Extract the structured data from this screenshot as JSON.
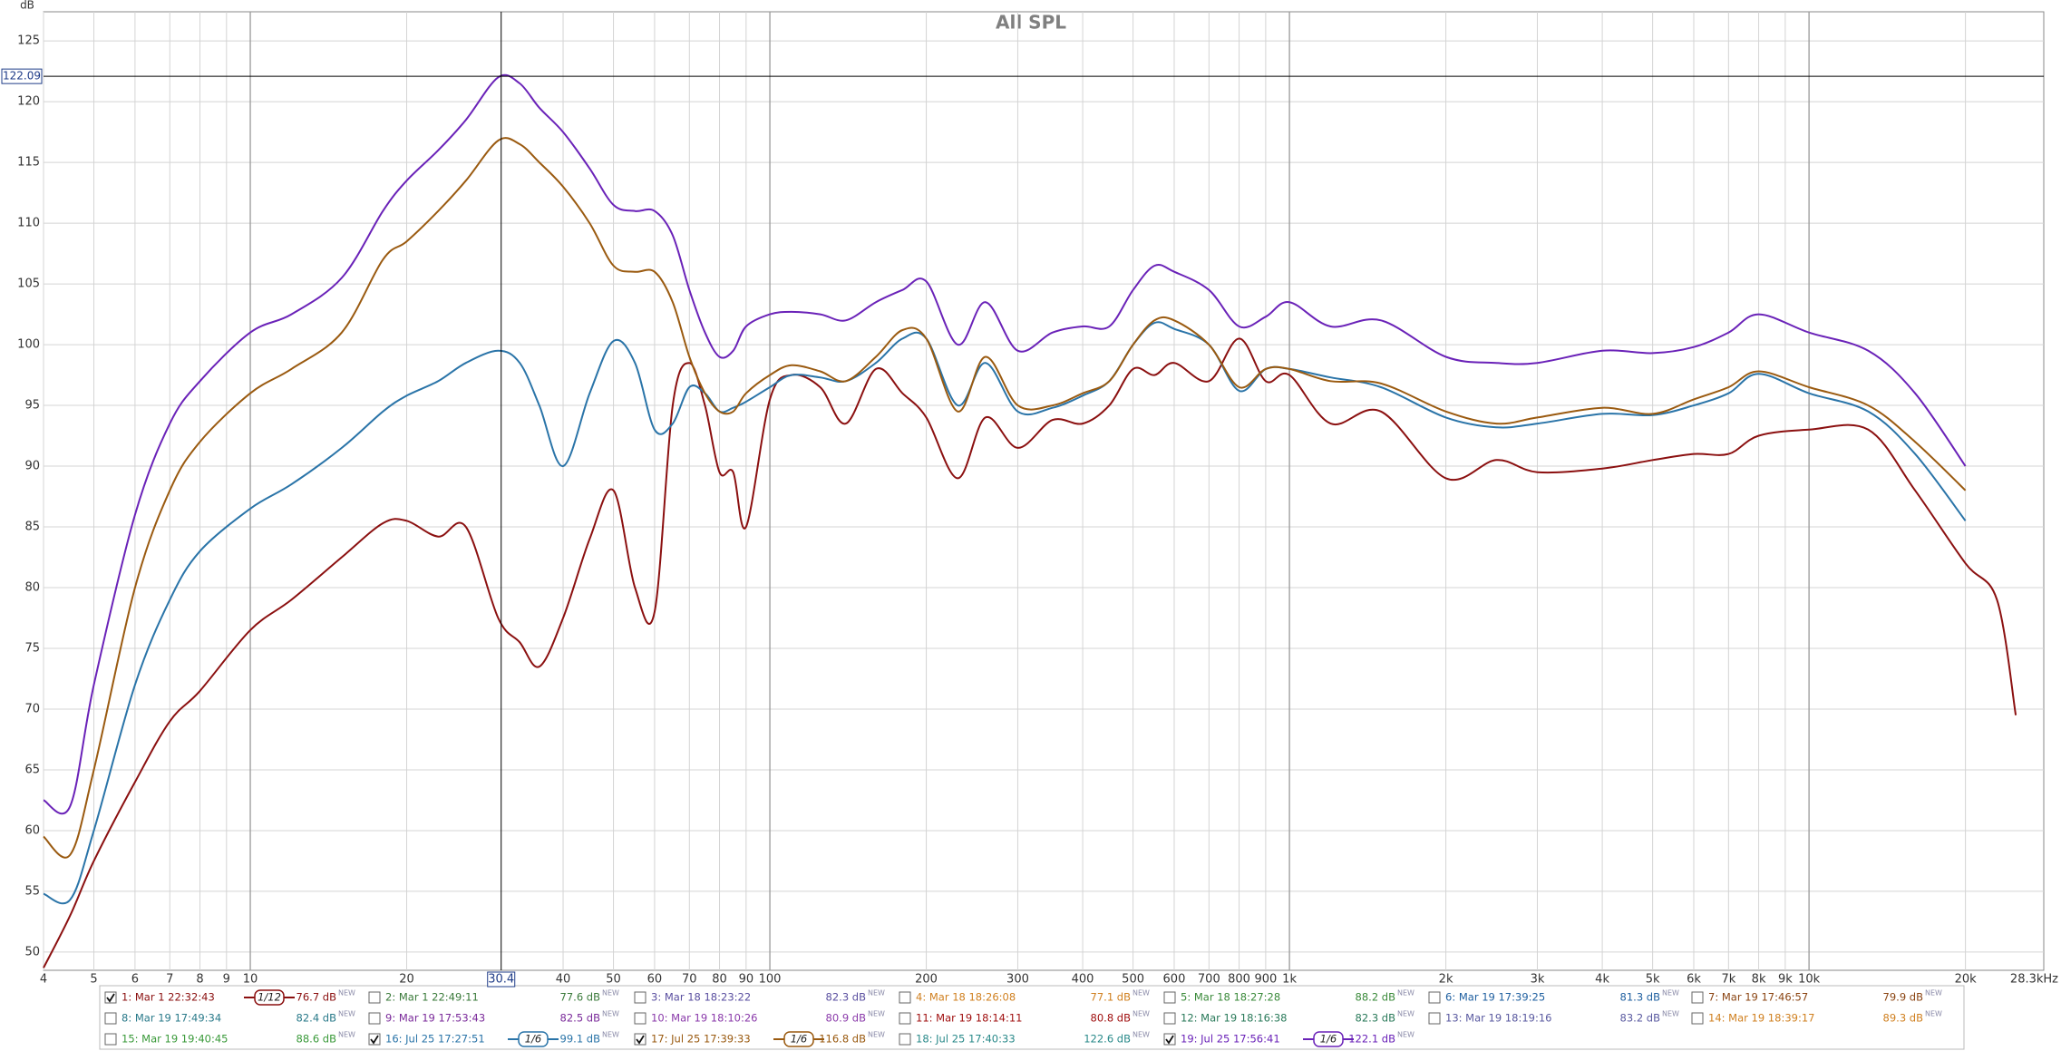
{
  "chart_data": {
    "type": "line",
    "title": "All SPL",
    "y_unit": "dB",
    "xscale": "log",
    "grid": true,
    "xlim": [
      4,
      28300
    ],
    "ylim": [
      48.5,
      127.4
    ],
    "xticks": [
      4,
      5,
      6,
      7,
      8,
      9,
      10,
      20,
      40,
      50,
      60,
      70,
      80,
      90,
      100,
      200,
      300,
      400,
      500,
      600,
      700,
      800,
      900,
      {
        "value": 1000,
        "label": "1k"
      },
      {
        "value": 2000,
        "label": "2k"
      },
      {
        "value": 3000,
        "label": "3k"
      },
      {
        "value": 4000,
        "label": "4k"
      },
      {
        "value": 5000,
        "label": "5k"
      },
      {
        "value": 6000,
        "label": "6k"
      },
      {
        "value": 7000,
        "label": "7k"
      },
      {
        "value": 8000,
        "label": "8k"
      },
      {
        "value": 9000,
        "label": "9k"
      },
      {
        "value": 10000,
        "label": "10k"
      },
      {
        "value": 20000,
        "label": "20k"
      },
      {
        "value": 28300,
        "label": "28.3kHz"
      }
    ],
    "yticks": [
      50,
      55,
      60,
      65,
      70,
      75,
      80,
      85,
      90,
      95,
      100,
      105,
      110,
      115,
      120,
      125
    ],
    "cursor": {
      "x": 30.4,
      "y": 122.09
    },
    "new_badge": "NEW",
    "x": [
      4,
      4.5,
      5,
      6,
      7,
      8,
      10,
      12,
      15,
      18,
      20,
      23,
      26,
      30,
      33,
      36,
      40,
      45,
      50,
      55,
      60,
      65,
      70,
      75,
      80,
      85,
      90,
      100,
      110,
      125,
      140,
      160,
      180,
      200,
      230,
      260,
      300,
      350,
      400,
      450,
      500,
      550,
      600,
      700,
      800,
      900,
      1000,
      1200,
      1500,
      2000,
      2500,
      3000,
      4000,
      5000,
      6000,
      7000,
      8000,
      10000,
      13000,
      16000,
      20000,
      23000,
      25000
    ],
    "series": [
      {
        "name": "1: Mar 1 22:32:43",
        "color": "#8b1010",
        "checked": true,
        "smoothing": "1/12",
        "level_label": "76.7 dB",
        "values": [
          48.7,
          53,
          57.5,
          64,
          69,
          71.5,
          76.5,
          79,
          82.5,
          85.3,
          85.5,
          84.2,
          85,
          77.5,
          75.5,
          73.5,
          77.5,
          84,
          88,
          80,
          78,
          95,
          98.5,
          95,
          89.5,
          89.5,
          85,
          95.5,
          97.5,
          96.5,
          93.5,
          98,
          96,
          94,
          89,
          94,
          91.5,
          93.8,
          93.5,
          95,
          98,
          97.5,
          98.5,
          97,
          100.5,
          97,
          97.5,
          93.5,
          94.5,
          89,
          90.5,
          89.5,
          89.8,
          90.5,
          91,
          91,
          92.5,
          93,
          93,
          88,
          82,
          79,
          69.5
        ]
      },
      {
        "name": "2: Mar 1 22:49:11",
        "color": "#3a7a3a",
        "checked": false,
        "level_label": "77.6 dB"
      },
      {
        "name": "3: Mar 18 18:23:22",
        "color": "#5a4fa0",
        "checked": false,
        "level_label": "82.3 dB"
      },
      {
        "name": "4: Mar 18 18:26:08",
        "color": "#d08020",
        "checked": false,
        "level_label": "77.1 dB"
      },
      {
        "name": "5: Mar 18 18:27:28",
        "color": "#3a8a3a",
        "checked": false,
        "level_label": "88.2 dB"
      },
      {
        "name": "6: Mar 19 17:39:25",
        "color": "#2060a0",
        "checked": false,
        "level_label": "81.3 dB"
      },
      {
        "name": "7: Mar 19 17:46:57",
        "color": "#8b4513",
        "checked": false,
        "level_label": "79.9 dB"
      },
      {
        "name": "8: Mar 19 17:49:34",
        "color": "#2a7a8a",
        "checked": false,
        "level_label": "82.4 dB"
      },
      {
        "name": "9: Mar 19 17:53:43",
        "color": "#7a2a9a",
        "checked": false,
        "level_label": "82.5 dB"
      },
      {
        "name": "10: Mar 19 18:10:26",
        "color": "#8a3aaa",
        "checked": false,
        "level_label": "80.9 dB"
      },
      {
        "name": "11: Mar 19 18:14:11",
        "color": "#a01010",
        "checked": false,
        "level_label": "80.8 dB"
      },
      {
        "name": "12: Mar 19 18:16:38",
        "color": "#2a7a5a",
        "checked": false,
        "level_label": "82.3 dB"
      },
      {
        "name": "13: Mar 19 18:19:16",
        "color": "#5a5aa0",
        "checked": false,
        "level_label": "83.2 dB"
      },
      {
        "name": "14: Mar 19 18:39:17",
        "color": "#d08020",
        "checked": false,
        "level_label": "89.3 dB"
      },
      {
        "name": "15: Mar 19 19:40:45",
        "color": "#3a9a3a",
        "checked": false,
        "level_label": "88.6 dB"
      },
      {
        "name": "16: Jul 25 17:27:51",
        "color": "#2a74a8",
        "checked": true,
        "smoothing": "1/6",
        "level_label": "99.1 dB",
        "values": [
          54.8,
          54.3,
          60,
          72,
          79,
          83,
          86.5,
          88.5,
          91.5,
          94.5,
          95.8,
          97,
          98.5,
          99.5,
          98.5,
          95,
          90,
          96,
          100.3,
          98.5,
          93,
          93.5,
          96.5,
          96,
          94.5,
          94.8,
          95.3,
          96.5,
          97.5,
          97.3,
          97,
          98.5,
          100.5,
          100.5,
          95,
          98.5,
          94.5,
          94.8,
          95.8,
          97,
          100,
          101.8,
          101.3,
          100,
          96.2,
          98,
          98,
          97.3,
          96.5,
          94,
          93.2,
          93.5,
          94.3,
          94.2,
          95,
          96,
          97.6,
          96,
          94.5,
          91,
          85.5,
          null,
          null
        ]
      },
      {
        "name": "17: Jul 25 17:39:33",
        "color": "#9a5a10",
        "checked": true,
        "smoothing": "1/6",
        "level_label": "116.8 dB",
        "values": [
          59.5,
          58,
          65,
          80,
          88,
          92,
          96,
          98,
          101,
          107,
          108.5,
          111,
          113.5,
          116.8,
          116.5,
          115,
          113,
          110,
          106.5,
          106,
          106,
          103.5,
          99,
          96,
          94.5,
          94.5,
          96,
          97.5,
          98.3,
          97.8,
          97,
          99,
          101.2,
          100.5,
          94.5,
          99,
          95,
          95,
          96,
          97,
          100,
          102,
          102,
          100,
          96.5,
          98,
          98,
          97,
          96.8,
          94.5,
          93.5,
          94,
          94.8,
          94.3,
          95.5,
          96.5,
          97.8,
          96.5,
          95,
          92,
          88,
          null,
          null
        ]
      },
      {
        "name": "18: Jul 25 17:40:33",
        "color": "#2a8a8a",
        "checked": false,
        "level_label": "122.6 dB"
      },
      {
        "name": "19: Jul 25 17:56:41",
        "color": "#6a22b8",
        "checked": true,
        "smoothing": "1/6",
        "level_label": "122.1 dB",
        "values": [
          62.5,
          62,
          72,
          86,
          93.5,
          97,
          101,
          102.5,
          105.5,
          111,
          113.5,
          116,
          118.5,
          122,
          121.5,
          119.5,
          117.5,
          114.5,
          111.5,
          111,
          111,
          109,
          104.5,
          101,
          99,
          99.5,
          101.5,
          102.5,
          102.7,
          102.5,
          102,
          103.5,
          104.5,
          105.2,
          100,
          103.5,
          99.5,
          101,
          101.5,
          101.5,
          104.5,
          106.5,
          106,
          104.5,
          101.5,
          102.3,
          103.5,
          101.5,
          102,
          99,
          98.5,
          98.5,
          99.5,
          99.3,
          99.8,
          101,
          102.5,
          101,
          99.5,
          96,
          90,
          null,
          null
        ]
      }
    ]
  }
}
